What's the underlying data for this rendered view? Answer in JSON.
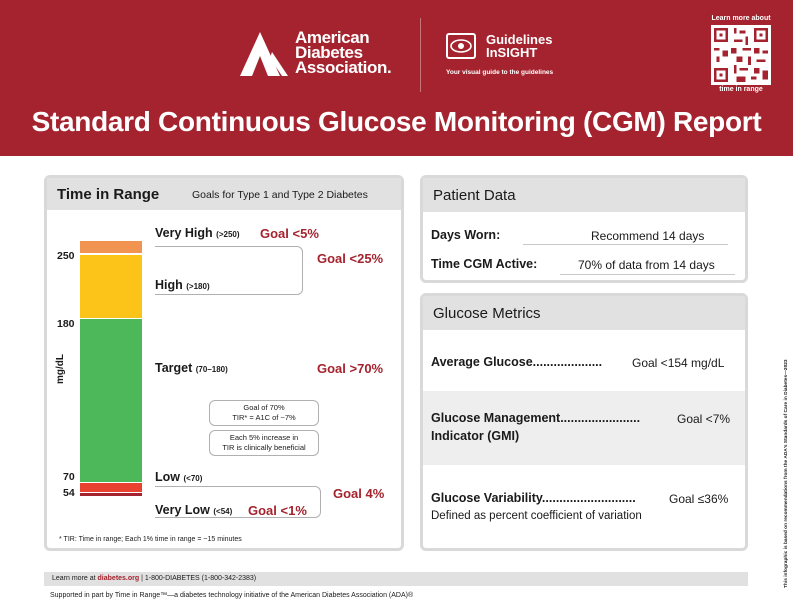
{
  "header": {
    "org_line1": "American",
    "org_line2": "Diabetes",
    "org_line3": "Association.",
    "guidelines_line1": "Guidelines",
    "guidelines_line2": "InSIGHT",
    "guidelines_sub": "Your visual guide to the guidelines",
    "qr_top": "Learn more about",
    "qr_bottom": "time in range",
    "title": "Standard Continuous Glucose Monitoring (CGM) Report",
    "brand_color": "#a4232e"
  },
  "time_in_range": {
    "title": "Time in Range",
    "goals_subtitle": "Goals for Type 1 and Type 2 Diabetes",
    "y_label": "mg/dL",
    "ticks": [
      "250",
      "180",
      "70",
      "54"
    ],
    "categories": [
      {
        "name": "Very High",
        "range": "(>250)",
        "goal": "Goal <5%",
        "color": "#f29451"
      },
      {
        "name": "High",
        "range": "(>180)",
        "goal": "Goal <25%",
        "color": "#fcc419"
      },
      {
        "name": "Target",
        "range": "(70–180)",
        "goal": "Goal >70%",
        "color": "#4db85a"
      },
      {
        "name": "Low",
        "range": "(<70)",
        "goal": "Goal 4%",
        "color": "#e8412f"
      },
      {
        "name": "Very Low",
        "range": "(<54)",
        "goal": "Goal <1%",
        "color": "#a4232e"
      }
    ],
    "note1_line1": "Goal of 70%",
    "note1_line2": "TIR* = A1C of ~7%",
    "note2_line1": "Each 5% increase in",
    "note2_line2": "TIR is clinically beneficial",
    "footnote": "* TIR: Time in range; Each 1% time in range = ~15 minutes"
  },
  "patient_data": {
    "title": "Patient Data",
    "days_worn_label": "Days Worn:",
    "days_worn_value": "Recommend 14 days",
    "active_label": "Time CGM Active:",
    "active_value": "70% of data from 14 days"
  },
  "glucose_metrics": {
    "title": "Glucose Metrics",
    "avg_label": "Average Glucose....................",
    "avg_value": "Goal <154 mg/dL",
    "gmi_label": "Glucose Management.......................",
    "gmi_label2": "Indicator (GMI)",
    "gmi_value": "Goal <7%",
    "var_label": "Glucose Variability...........................",
    "var_value": "Goal ≤36%",
    "var_desc": "Defined as percent coefficient of variation"
  },
  "footer": {
    "learn_more": "Learn more at ",
    "link": "diabetes.org",
    "phone": "  |  1-800-DIABETES (1-800-342-2383)",
    "supported": "Supported in part by Time in Range™—a diabetes technology initiative of the American Diabetes Association (ADA)®",
    "side_note": "This infographic is based on recommendations from the ADA's Standards of Care in Diabetes—2023"
  }
}
